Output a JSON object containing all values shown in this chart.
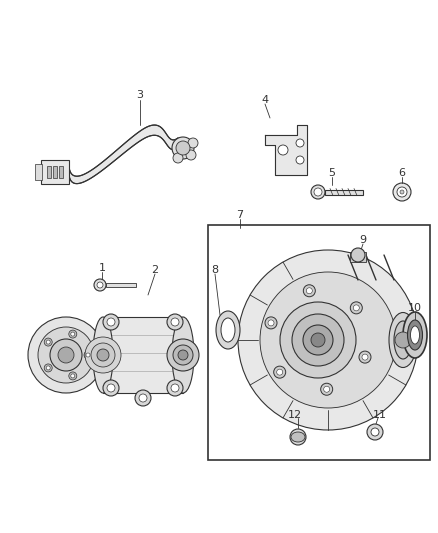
{
  "bg_color": "#ffffff",
  "fig_width": 4.38,
  "fig_height": 5.33,
  "dpi": 100,
  "dark": "#333333",
  "mid": "#888888",
  "light": "#cccccc",
  "lw": 0.8
}
